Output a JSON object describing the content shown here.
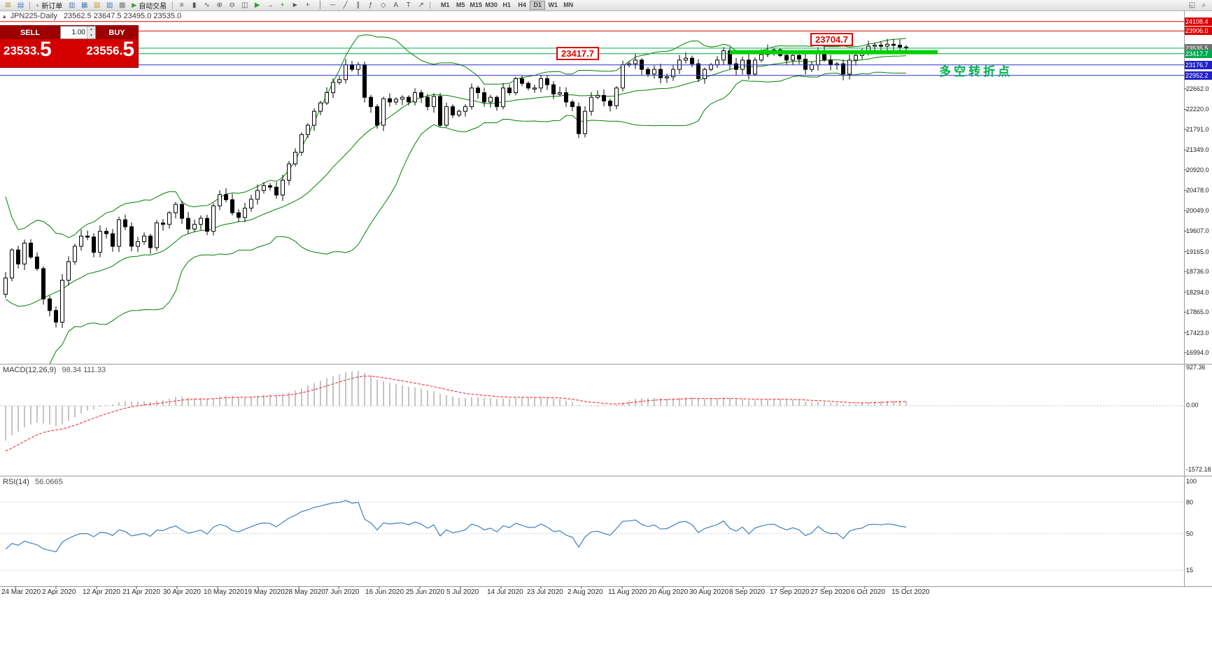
{
  "toolbar": {
    "new_order_label": "新订单",
    "new_order_glyph": "+",
    "autotrading_label": "自动交易",
    "autotrading_glyph": "▶",
    "timeframes": [
      "M1",
      "M5",
      "M15",
      "M30",
      "H1",
      "H4",
      "D1",
      "W1",
      "MN"
    ],
    "active_timeframe": "D1",
    "icons_left": [
      {
        "name": "new-chart-icon",
        "glyph": "⊞",
        "color": "#b08a3e"
      },
      {
        "name": "profiles-icon",
        "glyph": "▤",
        "color": "#4a7ebb"
      }
    ],
    "icons_mid1": [
      {
        "name": "market-watch-icon",
        "glyph": "▥",
        "color": "#4a7ebb"
      },
      {
        "name": "data-window-icon",
        "glyph": "▦",
        "color": "#4a7ebb"
      },
      {
        "name": "navigator-icon",
        "glyph": "▧",
        "color": "#c9a227"
      },
      {
        "name": "terminal-icon",
        "glyph": "▨",
        "color": "#4a7ebb"
      },
      {
        "name": "strategy-tester-icon",
        "glyph": "▩",
        "color": "#777777"
      }
    ],
    "icons_mid2": [
      {
        "name": "bars-chart-icon",
        "glyph": "≡",
        "color": "#555555"
      },
      {
        "name": "candlestick-chart-icon",
        "glyph": "▮",
        "color": "#555555"
      },
      {
        "name": "line-chart-icon",
        "glyph": "∿",
        "color": "#555555"
      },
      {
        "name": "zoom-in-icon",
        "glyph": "⊕",
        "color": "#555555"
      },
      {
        "name": "zoom-out-icon",
        "glyph": "⊖",
        "color": "#555555"
      },
      {
        "name": "tile-windows-icon",
        "glyph": "◫",
        "color": "#555555"
      },
      {
        "name": "auto-scroll-icon",
        "glyph": "▶",
        "color": "#2e9e2e"
      },
      {
        "name": "chart-shift-icon",
        "glyph": "→",
        "color": "#555555"
      },
      {
        "name": "indicators-icon",
        "glyph": "+",
        "color": "#2e9e2e"
      },
      {
        "name": "cursor-icon",
        "glyph": "►",
        "color": "#555555"
      },
      {
        "name": "crosshair-icon",
        "glyph": "+",
        "color": "#555555"
      },
      {
        "name": "vertical-line-icon",
        "glyph": "│",
        "color": "#555555"
      },
      {
        "name": "horizontal-line-icon",
        "glyph": "─",
        "color": "#555555"
      },
      {
        "name": "trendline-icon",
        "glyph": "╱",
        "color": "#555555"
      },
      {
        "name": "channel-icon",
        "glyph": "∥",
        "color": "#555555"
      },
      {
        "name": "fibonacci-icon",
        "glyph": "ƒ",
        "color": "#555555"
      },
      {
        "name": "shapes-icon",
        "glyph": "◇",
        "color": "#555555"
      },
      {
        "name": "text-label-icon",
        "glyph": "A",
        "color": "#555555"
      },
      {
        "name": "text-icon",
        "glyph": "T",
        "color": "#555555"
      },
      {
        "name": "arrows-icon",
        "glyph": "↗",
        "color": "#555555"
      }
    ],
    "icons_right": [
      {
        "name": "docking-icon",
        "glyph": "◱",
        "color": "#555555"
      },
      {
        "name": "search-icon",
        "glyph": "⌕",
        "color": "#555555"
      }
    ]
  },
  "chart_header": {
    "collapse_glyph": "▴",
    "symbol_title": "JPN225-Daily",
    "ohlc": "23562.5 23647.5 23495.0 23535.0"
  },
  "trade_panel": {
    "sell_label": "SELL",
    "buy_label": "BUY",
    "volume": "1.00",
    "sell_price_small": "23533.",
    "sell_price_big": "5",
    "buy_price_small": "23556.",
    "buy_price_big": "5"
  },
  "annotations": {
    "support_box": "23417.7",
    "resistance_box": "23704.7",
    "note_text": "多空转折点"
  },
  "macd_panel": {
    "name": "MACD(12,26,9)",
    "values": "98.34 111.33",
    "scale_max": "927.36",
    "scale_zero": "0.00",
    "scale_min": "-1572.18"
  },
  "rsi_panel": {
    "name": "RSI(14)",
    "value": "56.0665",
    "scale": [
      "100",
      "80",
      "50",
      "15"
    ]
  },
  "chart_data": {
    "type": "candlestick",
    "symbol": "JPN225",
    "timeframe": "Daily",
    "title_ohlc": {
      "open": 23562.5,
      "high": 23647.5,
      "low": 23495.0,
      "close": 23535.0
    },
    "x_axis_dates": [
      "24 Mar 2020",
      "2 Apr 2020",
      "12 Apr 2020",
      "21 Apr 2020",
      "30 Apr 2020",
      "10 May 2020",
      "19 May 2020",
      "28 May 2020",
      "7 Jun 2020",
      "16 Jun 2020",
      "25 Jun 2020",
      "5 Jul 2020",
      "14 Jul 2020",
      "23 Jul 2020",
      "2 Aug 2020",
      "11 Aug 2020",
      "20 Aug 2020",
      "30 Aug 2020",
      "8 Sep 2020",
      "17 Sep 2020",
      "27 Sep 2020",
      "6 Oct 2020",
      "15 Oct 2020"
    ],
    "first_open": 18250,
    "closes": [
      18600,
      19200,
      18900,
      19350,
      19050,
      18800,
      18150,
      17900,
      17650,
      18550,
      18950,
      19280,
      19500,
      19480,
      19150,
      19600,
      19550,
      19280,
      19850,
      19700,
      19280,
      19380,
      19500,
      19250,
      19780,
      19750,
      20000,
      20180,
      19880,
      19650,
      19750,
      19880,
      19600,
      20150,
      20390,
      20280,
      20000,
      19900,
      20100,
      20290,
      20480,
      20580,
      20550,
      20380,
      20700,
      21050,
      21300,
      21680,
      21880,
      22180,
      22360,
      22580,
      22800,
      22860,
      23180,
      23080,
      23180,
      22480,
      22280,
      21880,
      22450,
      22380,
      22440,
      22480,
      22380,
      22580,
      22480,
      22280,
      22500,
      21880,
      22280,
      22100,
      22180,
      22280,
      22680,
      22580,
      22380,
      22480,
      22280,
      22680,
      22580,
      22880,
      22780,
      22680,
      22680,
      22880,
      22750,
      22550,
      22580,
      22380,
      22280,
      21700,
      22180,
      22480,
      22520,
      22400,
      22300,
      22680,
      23180,
      23200,
      23280,
      23080,
      22980,
      23080,
      22900,
      22920,
      23080,
      23280,
      23320,
      23200,
      22880,
      23080,
      23180,
      23280,
      23480,
      23200,
      23080,
      23280,
      22980,
      23280,
      23400,
      23480,
      23500,
      23380,
      23280,
      23380,
      23300,
      23080,
      23180,
      23480,
      23280,
      23180,
      23200,
      22980,
      23280,
      23380,
      23420,
      23580,
      23600,
      23580,
      23620,
      23600,
      23560,
      23535
    ],
    "warmup_closes": [
      23400,
      23150,
      22900,
      22400,
      21800,
      21000,
      20100,
      19200,
      18300,
      17500,
      16900,
      16550,
      16450,
      17300,
      16900,
      17600,
      18200,
      17900,
      18500,
      18900,
      18600,
      18150,
      17950,
      18250
    ],
    "price_axis_ticks": [
      "22662.0",
      "22220.0",
      "21791.0",
      "21349.0",
      "20920.0",
      "20478.0",
      "20049.0",
      "19607.0",
      "19165.0",
      "18736.0",
      "18294.0",
      "17865.0",
      "17423.0",
      "16994.0"
    ],
    "price_tags": [
      {
        "text": "24108.4",
        "price": 24108.4,
        "color": "#e00000"
      },
      {
        "text": "23906.0",
        "price": 23906.0,
        "color": "#e00000"
      },
      {
        "text": "23535.5",
        "price": 23535.5,
        "color": "#6f6f6f"
      },
      {
        "text": "23417.7",
        "price": 23417.7,
        "color": "#00a84f"
      },
      {
        "text": "23176.7",
        "price": 23176.7,
        "color": "#2020cc"
      },
      {
        "text": "22952.2",
        "price": 22952.2,
        "color": "#2020cc"
      }
    ],
    "horizontal_lines": [
      {
        "price": 24108.4,
        "color": "#dd0000",
        "width": 1
      },
      {
        "price": 23906.0,
        "color": "#dd0000",
        "width": 1
      },
      {
        "price": 23535.5,
        "color": "#00b050",
        "width": 1
      },
      {
        "price": 23417.7,
        "color": "#00a040",
        "width": 1
      },
      {
        "price": 23176.7,
        "color": "#2a2ad0",
        "width": 1
      },
      {
        "price": 22952.2,
        "color": "#2a2ad0",
        "width": 1
      }
    ],
    "trendline": {
      "level": 23450,
      "start_index": 115,
      "end_index": 148,
      "color": "#00d000",
      "thickness": 6
    },
    "bollinger": {
      "period": 20,
      "deviation": 2,
      "color": "#008000"
    },
    "indicators": {
      "macd": {
        "fast": 12,
        "slow": 26,
        "signal": 9,
        "current": "98.34 111.33",
        "scale": [
          927.36,
          0.0,
          -1572.18
        ]
      },
      "rsi": {
        "period": 14,
        "current": 56.0665,
        "scale": [
          100,
          80,
          50,
          15
        ]
      }
    },
    "annotations": [
      {
        "text": "23417.7",
        "price": 23417.7,
        "kind": "price-box"
      },
      {
        "text": "23704.7",
        "price": 23704.7,
        "kind": "price-box"
      },
      {
        "text": "多空转折点",
        "kind": "note",
        "color": "#00b050"
      }
    ]
  }
}
